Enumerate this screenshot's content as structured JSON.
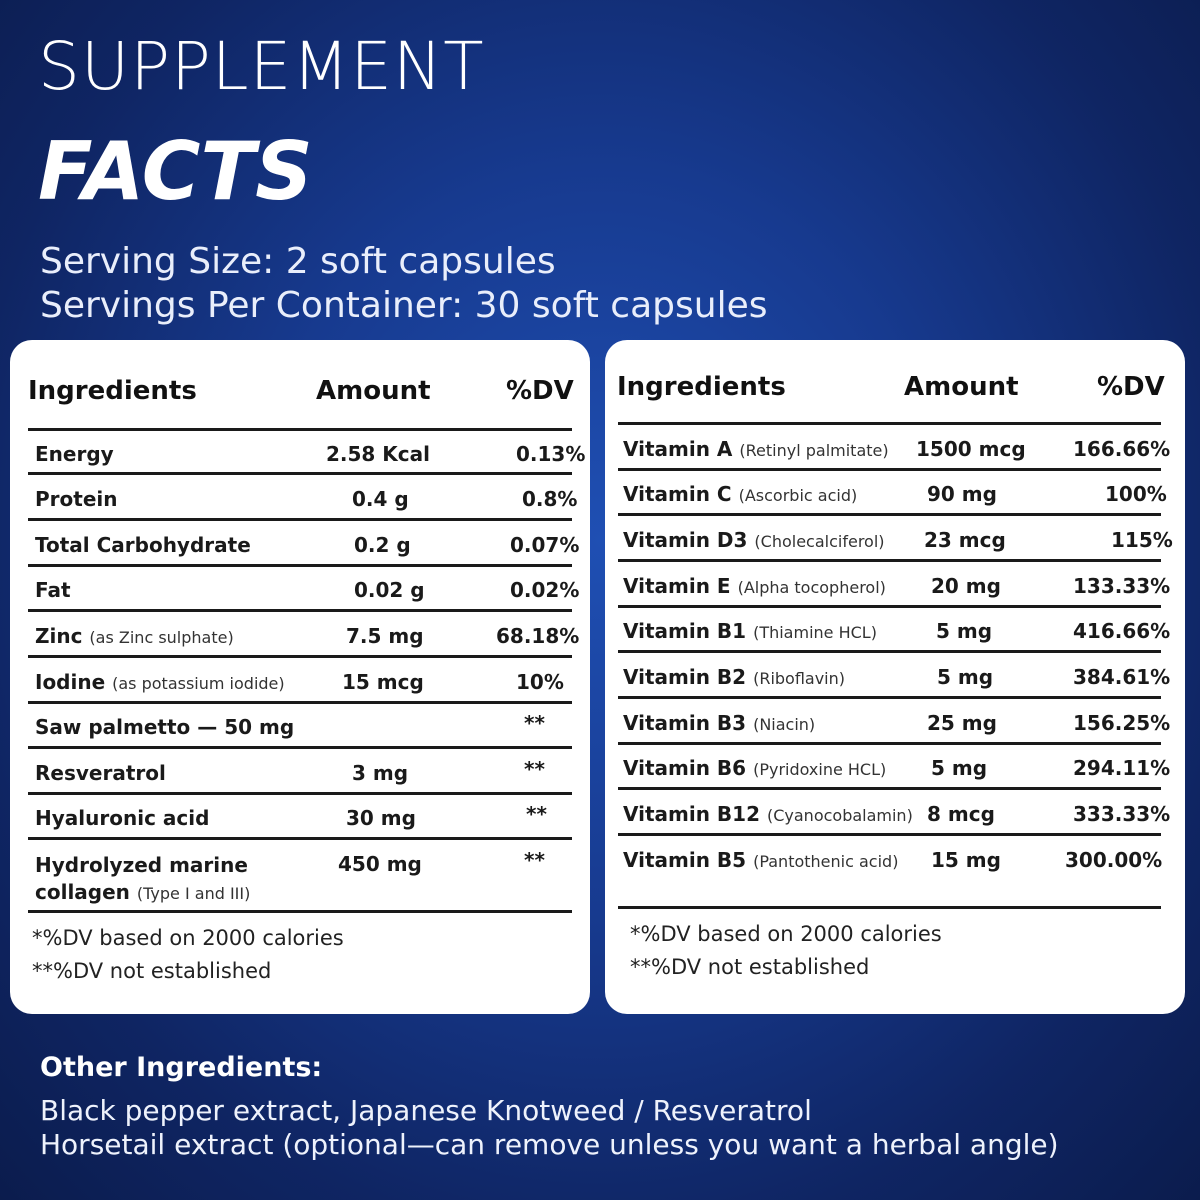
{
  "title": {
    "line1": "SUPPLEMENT",
    "line2": "FACTS"
  },
  "serving": {
    "size": "Serving Size: 2 soft capsules",
    "per_container": "Servings Per Container: 30 soft capsules"
  },
  "left_table": {
    "headers": {
      "ingredient": "Ingredients",
      "amount": "Amount",
      "dv": "%DV"
    },
    "rows": [
      {
        "name": "Energy",
        "sub": "",
        "amount": "2.58 Kcal",
        "dv": "0.13%"
      },
      {
        "name": "Protein",
        "sub": "",
        "amount": "0.4 g",
        "dv": "0.8%"
      },
      {
        "name": "Total Carbohydrate",
        "sub": "",
        "amount": "0.2 g",
        "dv": "0.07%"
      },
      {
        "name": "Fat",
        "sub": "",
        "amount": "0.02 g",
        "dv": "0.02%"
      },
      {
        "name": "Zinc",
        "sub": "(as Zinc sulphate)",
        "amount": "7.5 mg",
        "dv": "68.18%"
      },
      {
        "name": "Iodine",
        "sub": "(as potassium iodide)",
        "amount": "15 mcg",
        "dv": "10%"
      },
      {
        "name": "Saw palmetto — 50 mg",
        "sub": "",
        "amount": "",
        "dv": "**"
      },
      {
        "name": "Resveratrol",
        "sub": "",
        "amount": "3 mg",
        "dv": "**"
      },
      {
        "name": "Hyaluronic acid",
        "sub": "",
        "amount": "30 mg",
        "dv": "**"
      },
      {
        "name": "Hydrolyzed marine",
        "name2": "collagen",
        "sub": "(Type I and III)",
        "amount": "450 mg",
        "dv": "**"
      }
    ],
    "notes": [
      "*%DV based on 2000 calories",
      "**%DV not established"
    ]
  },
  "right_table": {
    "headers": {
      "ingredient": "Ingredients",
      "amount": "Amount",
      "dv": "%DV"
    },
    "rows": [
      {
        "name": "Vitamin A",
        "sub": "(Retinyl palmitate)",
        "amount": "1500 mcg",
        "dv": "166.66%"
      },
      {
        "name": "Vitamin C",
        "sub": "(Ascorbic acid)",
        "amount": "90 mg",
        "dv": "100%"
      },
      {
        "name": "Vitamin D3",
        "sub": "(Cholecalciferol)",
        "amount": "23 mcg",
        "dv": "115%"
      },
      {
        "name": "Vitamin E",
        "sub": "(Alpha tocopherol)",
        "amount": "20 mg",
        "dv": "133.33%"
      },
      {
        "name": "Vitamin B1",
        "sub": "(Thiamine HCL)",
        "amount": "5 mg",
        "dv": "416.66%"
      },
      {
        "name": "Vitamin B2",
        "sub": "(Riboflavin)",
        "amount": "5 mg",
        "dv": "384.61%"
      },
      {
        "name": "Vitamin B3",
        "sub": "(Niacin)",
        "amount": "25 mg",
        "dv": "156.25%"
      },
      {
        "name": "Vitamin B6",
        "sub": "(Pyridoxine HCL)",
        "amount": "5 mg",
        "dv": "294.11%"
      },
      {
        "name": "Vitamin B12",
        "sub": "(Cyanocobalamin)",
        "amount": "8 mcg",
        "dv": "333.33%"
      },
      {
        "name": "Vitamin B5",
        "sub": "(Pantothenic acid)",
        "amount": "15 mg",
        "dv": "300.00%"
      }
    ],
    "notes": [
      "*%DV based on 2000 calories",
      "**%DV not established"
    ]
  },
  "other_ingredients": {
    "title": "Other Ingredients:",
    "line1": "Black pepper extract, Japanese Knotweed / Resveratrol",
    "line2": "Horsetail extract (optional—can remove unless you want a herbal angle)"
  }
}
